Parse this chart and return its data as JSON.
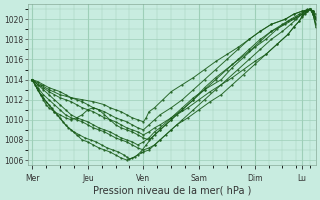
{
  "xlabel": "Pression niveau de la mer( hPa )",
  "bg_color": "#c8ece0",
  "plot_bg_color": "#c8ece0",
  "line_color": "#1a5c1a",
  "grid_color": "#9ecfb8",
  "tick_color": "#333333",
  "ylim": [
    1005.5,
    1021.5
  ],
  "yticks": [
    1006,
    1008,
    1010,
    1012,
    1014,
    1016,
    1018,
    1020
  ],
  "day_positions": [
    0,
    1,
    2,
    3,
    4,
    4.85
  ],
  "day_labels": [
    "Mer",
    "Jeu",
    "Ven",
    "Sam",
    "Dim",
    "Lu"
  ],
  "xlim": [
    -0.08,
    5.1
  ],
  "figsize": [
    3.2,
    2.0
  ],
  "dpi": 100,
  "series": [
    [
      0.0,
      1014.0,
      0.05,
      1013.5,
      0.1,
      1013.0,
      0.15,
      1012.5,
      0.2,
      1012.0,
      0.25,
      1011.5,
      0.3,
      1011.2,
      0.4,
      1010.8,
      0.5,
      1010.5,
      0.6,
      1010.2,
      0.7,
      1010.0,
      0.8,
      1010.2,
      0.9,
      1010.5,
      1.0,
      1011.0,
      1.1,
      1011.2,
      1.2,
      1011.0,
      1.3,
      1010.5,
      1.4,
      1010.0,
      1.5,
      1009.5,
      1.6,
      1009.2,
      1.7,
      1009.0,
      1.8,
      1008.8,
      1.9,
      1008.5,
      2.0,
      1008.2,
      2.1,
      1008.0,
      2.2,
      1008.5,
      2.3,
      1009.0,
      2.4,
      1009.5,
      2.5,
      1010.0,
      2.6,
      1010.5,
      2.8,
      1011.2,
      3.0,
      1012.0,
      3.2,
      1012.8,
      3.4,
      1013.5,
      3.6,
      1014.2,
      3.8,
      1015.0,
      4.0,
      1015.8,
      4.2,
      1016.5,
      4.4,
      1017.5,
      4.6,
      1018.5,
      4.7,
      1019.2,
      4.8,
      1019.8,
      4.85,
      1020.2,
      4.9,
      1020.5,
      4.95,
      1020.8,
      5.0,
      1021.0,
      5.05,
      1020.5,
      5.1,
      1019.5
    ],
    [
      0.0,
      1014.0,
      0.1,
      1013.2,
      0.2,
      1012.5,
      0.3,
      1012.0,
      0.4,
      1011.5,
      0.5,
      1011.0,
      0.6,
      1010.5,
      0.7,
      1010.2,
      0.8,
      1010.0,
      0.9,
      1009.8,
      1.0,
      1009.5,
      1.1,
      1009.2,
      1.2,
      1009.0,
      1.3,
      1008.8,
      1.4,
      1008.5,
      1.5,
      1008.2,
      1.6,
      1008.0,
      1.7,
      1007.8,
      1.8,
      1007.5,
      1.9,
      1007.2,
      2.0,
      1007.0,
      2.1,
      1007.2,
      2.2,
      1007.5,
      2.3,
      1008.0,
      2.4,
      1008.5,
      2.5,
      1009.0,
      2.6,
      1009.5,
      2.8,
      1010.2,
      3.0,
      1011.0,
      3.2,
      1011.8,
      3.4,
      1012.5,
      3.6,
      1013.5,
      3.8,
      1014.5,
      4.0,
      1015.5,
      4.2,
      1016.5,
      4.4,
      1017.5,
      4.6,
      1018.5,
      4.7,
      1019.2,
      4.8,
      1019.8,
      4.85,
      1020.3,
      4.9,
      1020.6,
      4.95,
      1020.8,
      5.0,
      1021.0,
      5.05,
      1020.8,
      5.1,
      1020.0
    ],
    [
      0.0,
      1014.0,
      0.1,
      1013.0,
      0.2,
      1012.2,
      0.3,
      1011.5,
      0.4,
      1010.8,
      0.5,
      1010.2,
      0.6,
      1009.5,
      0.7,
      1009.0,
      0.8,
      1008.5,
      0.9,
      1008.0,
      1.0,
      1007.8,
      1.1,
      1007.5,
      1.2,
      1007.2,
      1.3,
      1007.0,
      1.4,
      1006.8,
      1.5,
      1006.5,
      1.6,
      1006.2,
      1.7,
      1006.0,
      1.8,
      1006.2,
      1.9,
      1006.5,
      2.0,
      1006.8,
      2.1,
      1007.0,
      2.2,
      1007.5,
      2.3,
      1008.0,
      2.5,
      1009.0,
      2.7,
      1010.0,
      2.9,
      1011.0,
      3.1,
      1012.0,
      3.3,
      1013.0,
      3.5,
      1014.0,
      3.7,
      1015.0,
      3.9,
      1016.0,
      4.1,
      1017.0,
      4.3,
      1018.0,
      4.5,
      1018.8,
      4.65,
      1019.5,
      4.75,
      1020.0,
      4.85,
      1020.5,
      4.9,
      1020.8,
      4.95,
      1021.0,
      5.0,
      1021.0,
      5.05,
      1020.5,
      5.1,
      1019.5
    ],
    [
      0.0,
      1014.0,
      0.08,
      1013.2,
      0.15,
      1012.5,
      0.25,
      1011.8,
      0.35,
      1011.2,
      0.45,
      1010.5,
      0.55,
      1009.8,
      0.65,
      1009.2,
      0.75,
      1008.8,
      0.85,
      1008.5,
      0.95,
      1008.2,
      1.05,
      1008.0,
      1.15,
      1007.8,
      1.25,
      1007.5,
      1.35,
      1007.2,
      1.45,
      1007.0,
      1.55,
      1006.8,
      1.65,
      1006.5,
      1.7,
      1006.3,
      1.75,
      1006.1,
      1.85,
      1006.3,
      1.95,
      1006.8,
      2.05,
      1007.5,
      2.15,
      1008.2,
      2.3,
      1009.0,
      2.5,
      1010.0,
      2.7,
      1011.0,
      2.9,
      1012.0,
      3.1,
      1013.2,
      3.3,
      1014.2,
      3.6,
      1015.5,
      3.9,
      1016.8,
      4.1,
      1017.8,
      4.3,
      1018.8,
      4.55,
      1019.5,
      4.7,
      1020.0,
      4.85,
      1020.5,
      4.9,
      1020.8,
      5.0,
      1021.0,
      5.05,
      1020.5,
      5.1,
      1019.2
    ],
    [
      0.0,
      1014.0,
      0.1,
      1013.5,
      0.2,
      1013.0,
      0.3,
      1012.5,
      0.4,
      1012.0,
      0.5,
      1011.5,
      0.6,
      1011.0,
      0.7,
      1010.5,
      0.8,
      1010.2,
      0.9,
      1010.0,
      1.0,
      1009.8,
      1.1,
      1009.5,
      1.2,
      1009.2,
      1.3,
      1009.0,
      1.4,
      1008.8,
      1.5,
      1008.5,
      1.6,
      1008.2,
      1.7,
      1008.0,
      1.8,
      1007.8,
      1.9,
      1007.5,
      2.0,
      1007.8,
      2.1,
      1008.2,
      2.2,
      1008.8,
      2.3,
      1009.2,
      2.5,
      1010.2,
      2.7,
      1011.2,
      2.9,
      1012.2,
      3.1,
      1013.0,
      3.4,
      1014.0,
      3.6,
      1015.2,
      3.8,
      1016.2,
      4.0,
      1017.2,
      4.2,
      1018.0,
      4.4,
      1019.0,
      4.6,
      1019.8,
      4.75,
      1020.2,
      4.85,
      1020.5,
      4.95,
      1020.8,
      5.0,
      1021.0,
      5.05,
      1020.8,
      5.1,
      1020.0
    ],
    [
      0.0,
      1014.0,
      0.1,
      1013.5,
      0.2,
      1013.2,
      0.3,
      1012.8,
      0.4,
      1012.5,
      0.5,
      1012.2,
      0.6,
      1012.0,
      0.7,
      1011.8,
      0.8,
      1011.5,
      0.9,
      1011.2,
      1.0,
      1011.0,
      1.1,
      1010.8,
      1.2,
      1010.5,
      1.3,
      1010.2,
      1.4,
      1010.0,
      1.5,
      1009.8,
      1.6,
      1009.5,
      1.7,
      1009.2,
      1.8,
      1009.0,
      1.9,
      1008.8,
      2.0,
      1008.5,
      2.1,
      1008.8,
      2.2,
      1009.2,
      2.3,
      1009.5,
      2.5,
      1010.2,
      2.7,
      1011.0,
      2.9,
      1012.0,
      3.1,
      1013.0,
      3.3,
      1014.0,
      3.5,
      1015.0,
      3.7,
      1016.0,
      3.9,
      1017.0,
      4.1,
      1018.0,
      4.3,
      1018.8,
      4.5,
      1019.5,
      4.65,
      1020.0,
      4.8,
      1020.5,
      4.9,
      1020.8,
      5.0,
      1021.0,
      5.05,
      1020.8,
      5.1,
      1020.2
    ],
    [
      0.0,
      1014.0,
      0.1,
      1013.8,
      0.2,
      1013.5,
      0.3,
      1013.2,
      0.4,
      1013.0,
      0.5,
      1012.8,
      0.6,
      1012.5,
      0.7,
      1012.2,
      0.8,
      1012.0,
      0.9,
      1011.8,
      1.0,
      1011.5,
      1.1,
      1011.2,
      1.2,
      1011.0,
      1.3,
      1010.8,
      1.4,
      1010.5,
      1.5,
      1010.2,
      1.6,
      1010.0,
      1.7,
      1009.8,
      1.8,
      1009.5,
      1.9,
      1009.2,
      2.0,
      1009.0,
      2.1,
      1009.5,
      2.2,
      1010.0,
      2.3,
      1010.5,
      2.5,
      1011.2,
      2.7,
      1012.0,
      2.9,
      1013.0,
      3.1,
      1014.0,
      3.3,
      1015.0,
      3.5,
      1016.0,
      3.7,
      1017.0,
      3.9,
      1018.0,
      4.1,
      1018.8,
      4.3,
      1019.5,
      4.55,
      1020.0,
      4.7,
      1020.5,
      4.85,
      1020.8,
      5.0,
      1021.0,
      5.05,
      1020.8,
      5.1,
      1020.5
    ],
    [
      0.0,
      1014.0,
      0.15,
      1013.5,
      0.3,
      1013.0,
      0.5,
      1012.5,
      0.7,
      1012.2,
      0.9,
      1012.0,
      1.1,
      1011.8,
      1.3,
      1011.5,
      1.4,
      1011.2,
      1.5,
      1011.0,
      1.6,
      1010.8,
      1.7,
      1010.5,
      1.8,
      1010.2,
      1.9,
      1010.0,
      2.0,
      1009.8,
      2.05,
      1010.2,
      2.1,
      1010.8,
      2.2,
      1011.2,
      2.35,
      1012.0,
      2.5,
      1012.8,
      2.7,
      1013.5,
      2.9,
      1014.2,
      3.1,
      1015.0,
      3.3,
      1015.8,
      3.5,
      1016.5,
      3.7,
      1017.2,
      3.9,
      1018.0,
      4.1,
      1018.8,
      4.3,
      1019.5,
      4.55,
      1020.0,
      4.7,
      1020.5,
      4.85,
      1020.8,
      5.0,
      1021.0,
      5.05,
      1020.5,
      5.1,
      1020.0
    ]
  ]
}
